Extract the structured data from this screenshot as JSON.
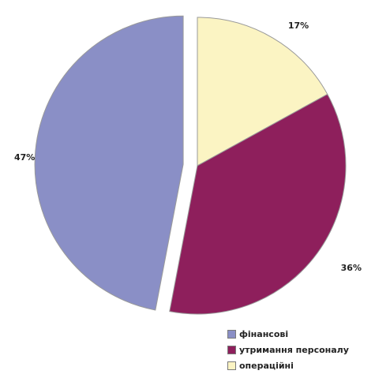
{
  "chart_data": {
    "type": "pie",
    "title": "",
    "legend_position": "bottom-right",
    "slices": [
      {
        "name": "фінансові",
        "value": 47,
        "label": "47%",
        "color": "#8a8fc6",
        "exploded": true
      },
      {
        "name": "утримання персоналу",
        "value": 36,
        "label": "36%",
        "color": "#8e1f5c",
        "exploded": false
      },
      {
        "name": "операційні",
        "value": 17,
        "label": "17%",
        "color": "#fbf4c3",
        "exploded": false
      }
    ]
  }
}
